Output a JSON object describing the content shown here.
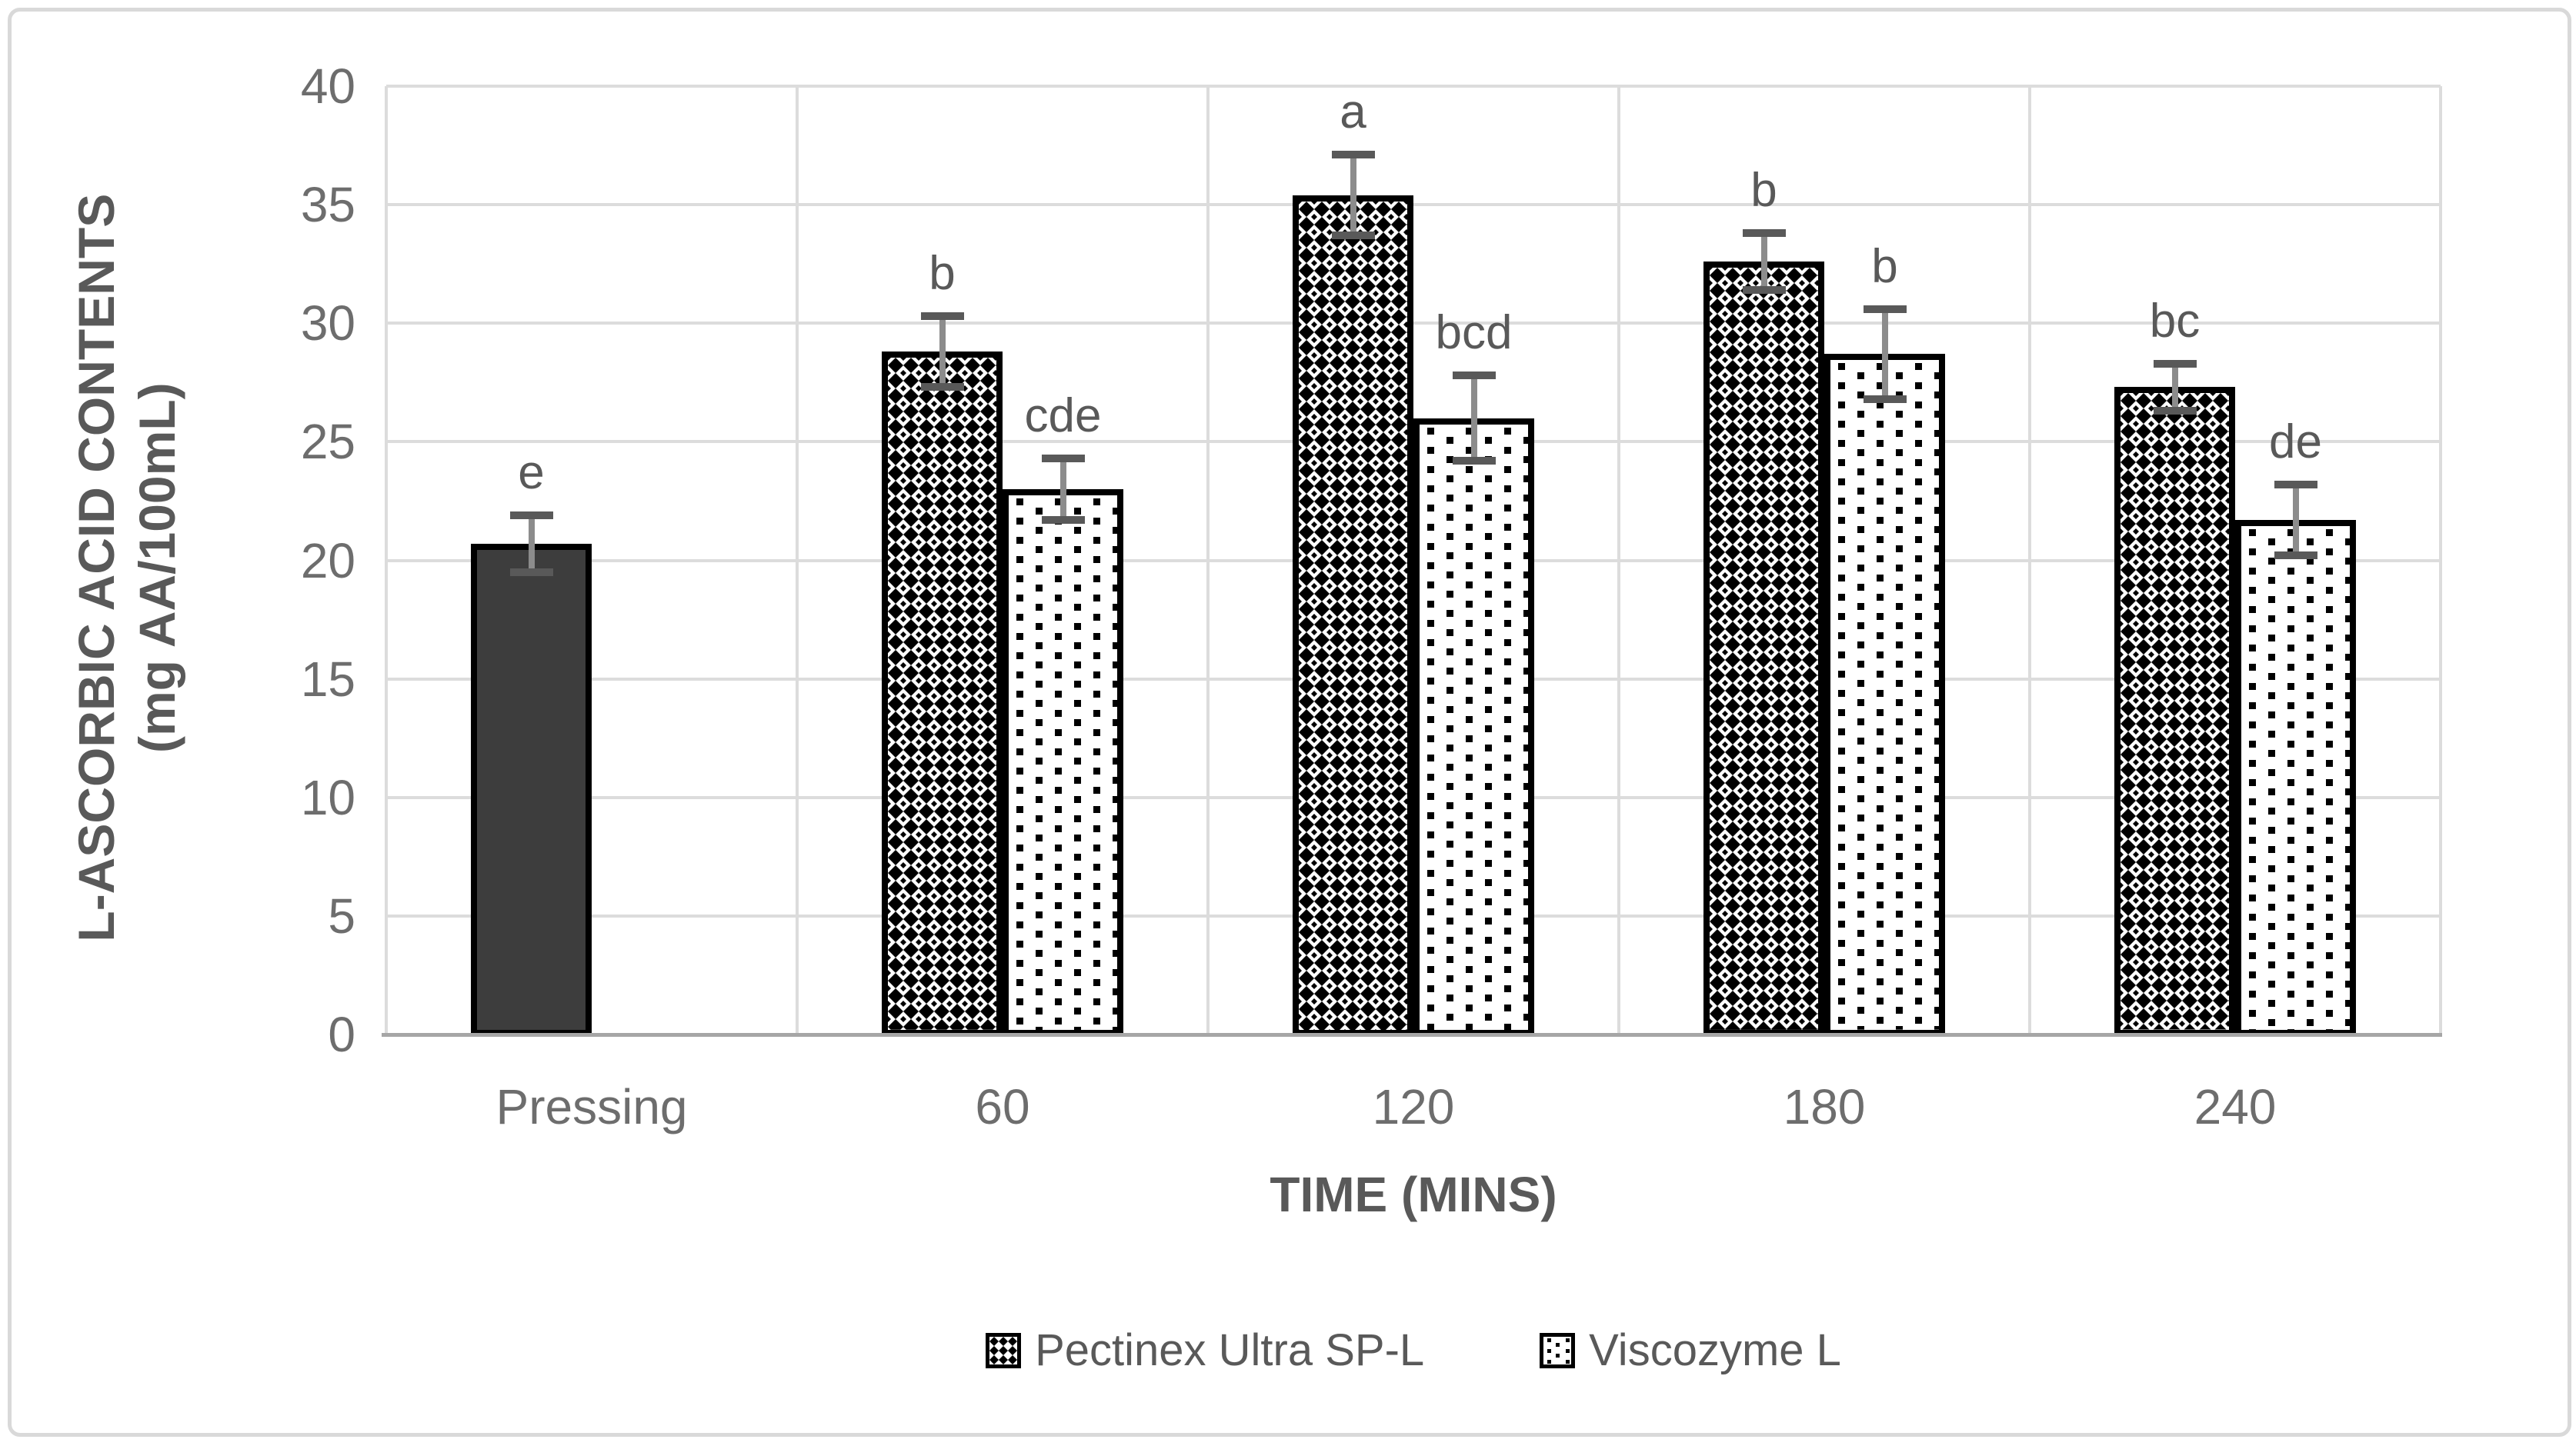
{
  "chart_data": {
    "type": "bar",
    "title": "",
    "y_axis": {
      "label_line1": "L-ASCORBIC ACID CONTENTS",
      "label_line2": "(mg AA/100mL)",
      "min": 0,
      "max": 40,
      "tick_step": 5,
      "tick_labels": [
        "0",
        "5",
        "10",
        "15",
        "20",
        "25",
        "30",
        "35",
        "40"
      ],
      "grid": true
    },
    "x_axis": {
      "label": "TIME (MINS)",
      "categories": [
        "Pressing",
        "60",
        "120",
        "180",
        "240"
      ]
    },
    "legend": [
      {
        "label": "Pectinex Ultra SP-L",
        "pattern": "diamond-check"
      },
      {
        "label": "Viscozyme L",
        "pattern": "dots"
      }
    ],
    "groups": [
      {
        "category": "Pressing",
        "bars": [
          {
            "style": "solid",
            "value": 20.7,
            "error": 1.2,
            "letter": "e"
          }
        ]
      },
      {
        "category": "60",
        "bars": [
          {
            "style": "diamond-check",
            "series": "Pectinex Ultra SP-L",
            "value": 28.8,
            "error": 1.5,
            "letter": "b"
          },
          {
            "style": "dots",
            "series": "Viscozyme L",
            "value": 23.0,
            "error": 1.3,
            "letter": "cde"
          }
        ]
      },
      {
        "category": "120",
        "bars": [
          {
            "style": "diamond-check",
            "series": "Pectinex Ultra SP-L",
            "value": 35.4,
            "error": 1.7,
            "letter": "a"
          },
          {
            "style": "dots",
            "series": "Viscozyme L",
            "value": 26.0,
            "error": 1.8,
            "letter": "bcd"
          }
        ]
      },
      {
        "category": "180",
        "bars": [
          {
            "style": "diamond-check",
            "series": "Pectinex Ultra SP-L",
            "value": 32.6,
            "error": 1.2,
            "letter": "b"
          },
          {
            "style": "dots",
            "series": "Viscozyme L",
            "value": 28.7,
            "error": 1.9,
            "letter": "b"
          }
        ]
      },
      {
        "category": "240",
        "bars": [
          {
            "style": "diamond-check",
            "series": "Pectinex Ultra SP-L",
            "value": 27.3,
            "error": 1.0,
            "letter": "bc"
          },
          {
            "style": "dots",
            "series": "Viscozyme L",
            "value": 21.7,
            "error": 1.5,
            "letter": "de"
          }
        ]
      }
    ],
    "colors": {
      "solid_bar": "#3d3d3d",
      "bar_border": "#000000",
      "gridline": "#dcdcdc",
      "axis_line": "#a6a6a6",
      "error_line": "#8c8c8c",
      "error_cap": "#595959",
      "tick_text": "#6d6d6d",
      "title_text": "#595959",
      "pattern_ink": "#000000"
    },
    "layout_hints": {
      "legend_position": "bottom",
      "grid": "horizontal-and-category-boundaries"
    }
  }
}
